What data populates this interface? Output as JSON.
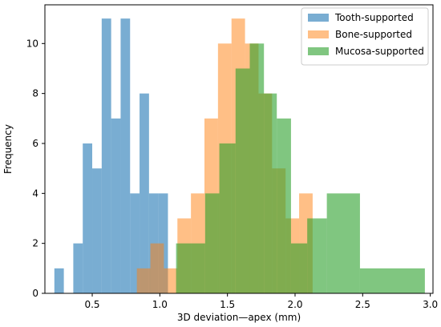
{
  "chart_data": {
    "type": "histogram",
    "xlabel": "3D deviation—apex (mm)",
    "ylabel": "Frequency",
    "xlim": [
      0.15,
      3.02
    ],
    "ylim": [
      0,
      11.55
    ],
    "xticks": [
      0.5,
      1.0,
      1.5,
      2.0,
      2.5,
      3.0
    ],
    "xtick_labels": [
      "0.5",
      "1.0",
      "1.5",
      "2.0",
      "2.5",
      "3.0"
    ],
    "yticks": [
      0,
      2,
      4,
      6,
      8,
      10
    ],
    "ytick_labels": [
      "0",
      "2",
      "4",
      "6",
      "8",
      "10"
    ],
    "grid": false,
    "legend_position": "top-right",
    "series": [
      {
        "name": "Tooth-supported",
        "color": "#1f77b4",
        "alpha": 0.6,
        "bin_edges": [
          0.22,
          0.29,
          0.36,
          0.43,
          0.5,
          0.57,
          0.64,
          0.71,
          0.78,
          0.85,
          0.92,
          0.99,
          1.06
        ],
        "counts": [
          1,
          0,
          2,
          6,
          5,
          11,
          7,
          11,
          4,
          8,
          4,
          4
        ]
      },
      {
        "name": "Bone-supported",
        "color": "#ff7f0e",
        "alpha": 0.5,
        "bin_edges": [
          0.83,
          0.93,
          1.03,
          1.13,
          1.23,
          1.33,
          1.43,
          1.53,
          1.63,
          1.73,
          1.83,
          1.93,
          2.03,
          2.13,
          2.23
        ],
        "counts": [
          1,
          2,
          1,
          3,
          4,
          7,
          10,
          11,
          10,
          8,
          5,
          3,
          4,
          0
        ]
      },
      {
        "name": "Mucosa-supported",
        "color": "#2ca02c",
        "alpha": 0.6,
        "bin_edges": [
          1.12,
          1.335,
          1.44,
          1.56,
          1.665,
          1.77,
          1.865,
          1.97,
          2.09,
          2.235,
          2.48,
          2.96
        ],
        "counts": [
          2,
          4,
          6,
          9,
          10,
          8,
          7,
          2,
          3,
          4,
          1
        ]
      }
    ]
  }
}
